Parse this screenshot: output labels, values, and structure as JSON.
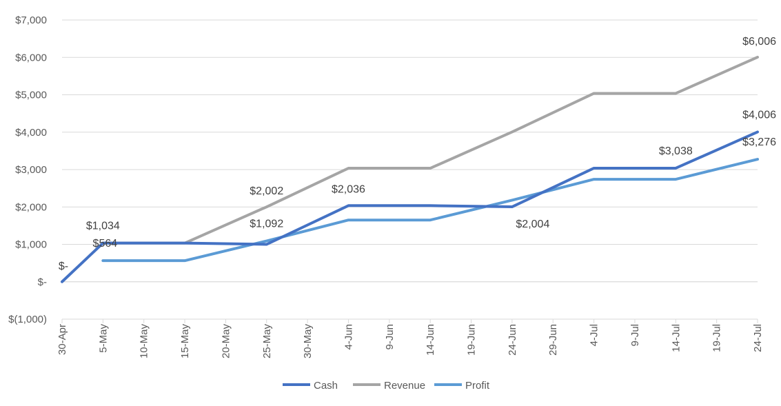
{
  "chart_data": {
    "type": "line",
    "x": [
      "30-Apr",
      "5-May",
      "10-May",
      "15-May",
      "20-May",
      "25-May",
      "30-May",
      "4-Jun",
      "9-Jun",
      "14-Jun",
      "19-Jun",
      "24-Jun",
      "29-Jun",
      "4-Jul",
      "9-Jul",
      "14-Jul",
      "19-Jul",
      "24-Jul"
    ],
    "ylim": [
      -1000,
      7000
    ],
    "yticks": [
      -1000,
      0,
      1000,
      2000,
      3000,
      4000,
      5000,
      6000,
      7000
    ],
    "ytick_labels": [
      "$(1,000)",
      "$-",
      "$1,000",
      "$2,000",
      "$3,000",
      "$4,000",
      "$5,000",
      "$6,000",
      "$7,000"
    ],
    "grid": true,
    "legend": "bottom",
    "series": [
      {
        "name": "Cash",
        "color": "#4472C4",
        "points": [
          {
            "x": "30-Apr",
            "y": 0
          },
          {
            "x": "5-May",
            "y": 1034
          },
          {
            "x": "15-May",
            "y": 1034
          },
          {
            "x": "25-May",
            "y": 1000
          },
          {
            "x": "4-Jun",
            "y": 2036
          },
          {
            "x": "14-Jun",
            "y": 2036
          },
          {
            "x": "24-Jun",
            "y": 2004
          },
          {
            "x": "4-Jul",
            "y": 3038
          },
          {
            "x": "14-Jul",
            "y": 3038
          },
          {
            "x": "24-Jul",
            "y": 4006
          }
        ]
      },
      {
        "name": "Revenue",
        "color": "#A5A5A5",
        "points": [
          {
            "x": "5-May",
            "y": 1034
          },
          {
            "x": "15-May",
            "y": 1034
          },
          {
            "x": "25-May",
            "y": 2002
          },
          {
            "x": "4-Jun",
            "y": 3036
          },
          {
            "x": "14-Jun",
            "y": 3036
          },
          {
            "x": "24-Jun",
            "y": 4005
          },
          {
            "x": "4-Jul",
            "y": 5038
          },
          {
            "x": "14-Jul",
            "y": 5038
          },
          {
            "x": "24-Jul",
            "y": 6006
          }
        ]
      },
      {
        "name": "Profit",
        "color": "#5B9BD5",
        "points": [
          {
            "x": "5-May",
            "y": 564
          },
          {
            "x": "15-May",
            "y": 564
          },
          {
            "x": "25-May",
            "y": 1092
          },
          {
            "x": "4-Jun",
            "y": 1650
          },
          {
            "x": "14-Jun",
            "y": 1650
          },
          {
            "x": "24-Jun",
            "y": 2180
          },
          {
            "x": "4-Jul",
            "y": 2740
          },
          {
            "x": "14-Jul",
            "y": 2740
          },
          {
            "x": "24-Jul",
            "y": 3276
          }
        ]
      }
    ],
    "data_labels": [
      {
        "series": "Cash",
        "x": "30-Apr",
        "y": 0,
        "text": "$-"
      },
      {
        "series": "Cash",
        "x": "5-May",
        "y": 1034,
        "text": "$1,034"
      },
      {
        "series": "Profit",
        "x": "5-May",
        "y": 564,
        "text": "$564"
      },
      {
        "series": "Revenue",
        "x": "25-May",
        "y": 2002,
        "text": "$2,002"
      },
      {
        "series": "Profit",
        "x": "25-May",
        "y": 1092,
        "text": "$1,092"
      },
      {
        "series": "Cash",
        "x": "4-Jun",
        "y": 2036,
        "text": "$2,036"
      },
      {
        "series": "Cash",
        "x": "24-Jun",
        "y": 2004,
        "text": "$2,004"
      },
      {
        "series": "Cash",
        "x": "14-Jul",
        "y": 3038,
        "text": "$3,038"
      },
      {
        "series": "Revenue",
        "x": "24-Jul",
        "y": 6006,
        "text": "$6,006"
      },
      {
        "series": "Cash",
        "x": "24-Jul",
        "y": 4006,
        "text": "$4,006"
      },
      {
        "series": "Profit",
        "x": "24-Jul",
        "y": 3276,
        "text": "$3,276"
      }
    ]
  }
}
